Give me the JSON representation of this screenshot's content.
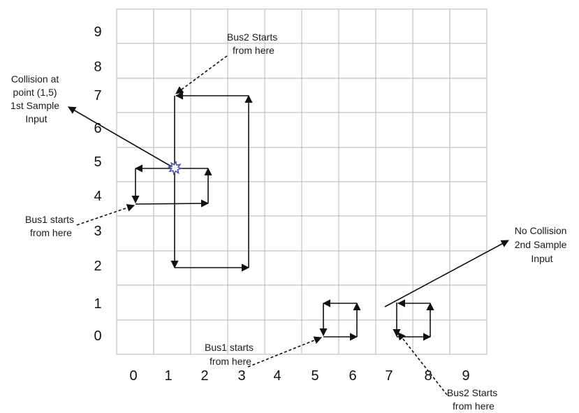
{
  "grid": {
    "x_labels": [
      "0",
      "1",
      "2",
      "3",
      "4",
      "5",
      "6",
      "7",
      "8",
      "9"
    ],
    "y_labels": [
      "9",
      "8",
      "7",
      "6",
      "5",
      "4",
      "3",
      "2",
      "1",
      "0"
    ],
    "line_color": "#b5b5b5"
  },
  "annotations": {
    "collision": [
      "Collision at",
      "point (1,5)",
      "1st Sample",
      "Input"
    ],
    "bus2_top": [
      "Bus2 Starts",
      "from here"
    ],
    "bus1_left": [
      "Bus1 starts",
      "from here"
    ],
    "no_collision": [
      "No Collision",
      "2nd Sample",
      "Input"
    ],
    "bus1_bottom": [
      "Bus1 starts",
      "from here"
    ],
    "bus2_bottom": [
      "Bus2 Starts",
      "from here"
    ]
  },
  "colors": {
    "path": "#111111",
    "collision_marker": "#3f51b5"
  }
}
